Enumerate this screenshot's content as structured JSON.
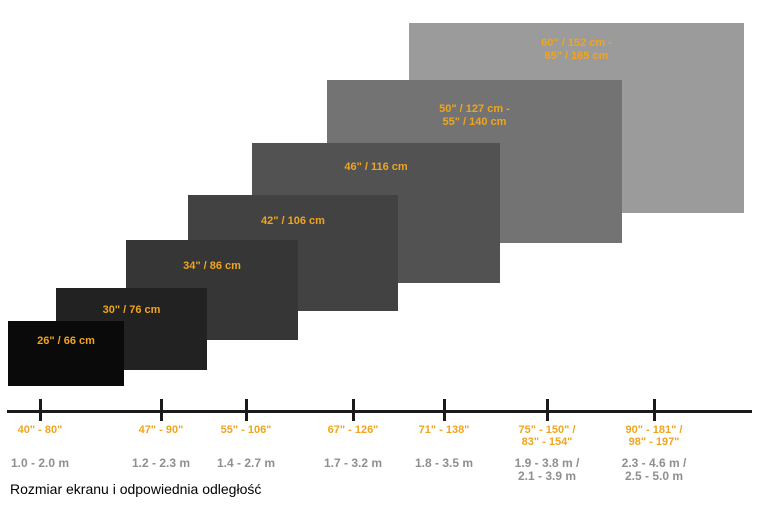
{
  "title": "Rozmiar ekranu i odpowiednia odległość",
  "colors": {
    "accent_orange": "#EFA51F",
    "distance_gray": "#8F8F8F",
    "axis_black": "#1A1A1A"
  },
  "screens": [
    {
      "label": "26\" / 66 cm",
      "color": "#0A0A0A"
    },
    {
      "label": "30\" / 76 cm",
      "color": "#222222"
    },
    {
      "label": "34\" / 86 cm",
      "color": "#363636"
    },
    {
      "label": "42\" / 106 cm",
      "color": "#424242"
    },
    {
      "label": "46\" / 116 cm",
      "color": "#525252"
    },
    {
      "label": "50\" / 127 cm -\n55\" / 140 cm",
      "color": "#737373"
    },
    {
      "label": "60\" / 152 cm -\n65\" / 165 cm",
      "color": "#9B9B9B"
    }
  ],
  "axis": {
    "items": [
      {
        "size_range": "40\" - 80\"",
        "distance_range": "1.0 - 2.0 m"
      },
      {
        "size_range": "47\" - 90\"",
        "distance_range": "1.2 - 2.3 m"
      },
      {
        "size_range": "55\" - 106\"",
        "distance_range": "1.4 - 2.7 m"
      },
      {
        "size_range": "67\" - 126\"",
        "distance_range": "1.7 - 3.2 m"
      },
      {
        "size_range": "71\" - 138\"",
        "distance_range": "1.8 - 3.5 m"
      },
      {
        "size_range": "75\" - 150\" /\n83\" - 154\"",
        "distance_range": "1.9 - 3.8 m /\n2.1 - 3.9 m"
      },
      {
        "size_range": "90\" - 181\" /\n98\" - 197\"",
        "distance_range": "2.3 - 4.6 m /\n2.5 - 5.0 m"
      }
    ]
  }
}
